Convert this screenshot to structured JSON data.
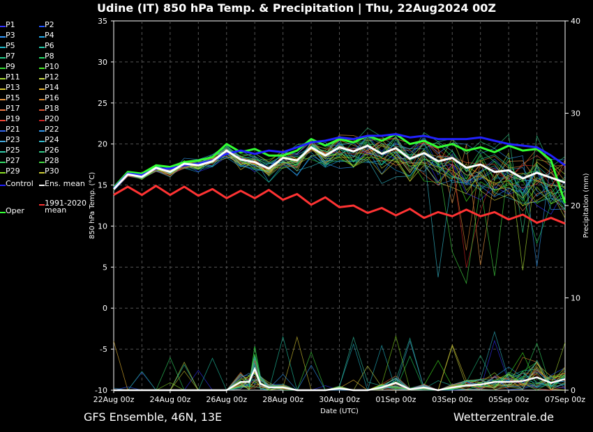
{
  "title": "Udine  (IT)  850 hPa Temp. & Precipitation | Thu, 22Aug2024 00Z",
  "footer": {
    "left": "GFS Ensemble, 46N, 13E",
    "right": "Wetterzentrale.de"
  },
  "legend": [
    {
      "label": "P1",
      "color": "#3333ff"
    },
    {
      "label": "P2",
      "color": "#2255ff"
    },
    {
      "label": "P3",
      "color": "#3399ff"
    },
    {
      "label": "P4",
      "color": "#22aaee"
    },
    {
      "label": "P5",
      "color": "#22bbcc"
    },
    {
      "label": "P6",
      "color": "#22ccaa"
    },
    {
      "label": "P7",
      "color": "#22cc88"
    },
    {
      "label": "P8",
      "color": "#22dd66"
    },
    {
      "label": "P9",
      "color": "#33dd33"
    },
    {
      "label": "P10",
      "color": "#44ee22"
    },
    {
      "label": "P11",
      "color": "#aadd33"
    },
    {
      "label": "P12",
      "color": "#ccdd44"
    },
    {
      "label": "P13",
      "color": "#ddcc33"
    },
    {
      "label": "P14",
      "color": "#eebb33"
    },
    {
      "label": "P15",
      "color": "#ee9944"
    },
    {
      "label": "P16",
      "color": "#dd8833"
    },
    {
      "label": "P17",
      "color": "#ee7744"
    },
    {
      "label": "P18",
      "color": "#dd5533"
    },
    {
      "label": "P19",
      "color": "#ee4433"
    },
    {
      "label": "P20",
      "color": "#cc2222"
    },
    {
      "label": "P21",
      "color": "#3366ee"
    },
    {
      "label": "P22",
      "color": "#3399ee"
    },
    {
      "label": "P23",
      "color": "#44aadd"
    },
    {
      "label": "P24",
      "color": "#33bbcc"
    },
    {
      "label": "P25",
      "color": "#33ccaa"
    },
    {
      "label": "P26",
      "color": "#33cc88"
    },
    {
      "label": "P27",
      "color": "#33dd66"
    },
    {
      "label": "P28",
      "color": "#44dd44"
    },
    {
      "label": "P29",
      "color": "#88dd22"
    },
    {
      "label": "P30",
      "color": "#cccc33"
    },
    {
      "label": "Control",
      "color": "#2222ff"
    },
    {
      "label": "Ens. mean",
      "color": "#ffffff"
    },
    {
      "label": "1991-2020\nmean",
      "color": "#ff3333"
    },
    {
      "label": "Oper",
      "color": "#33ff33"
    }
  ],
  "chart_data": {
    "type": "line",
    "title": "Udine  (IT)  850 hPa Temp. & Precipitation | Thu, 22Aug2024 00Z",
    "xlabel": "Date (UTC)",
    "ylabel_left": "850 hPa Temp. (°C)",
    "ylabel_right": "Precipitation (mm)",
    "ylim_left": [
      -10,
      35
    ],
    "ylim_right": [
      0,
      40
    ],
    "yticks_left": [
      -10,
      -5,
      0,
      5,
      10,
      15,
      20,
      25,
      30,
      35
    ],
    "yticks_right": [
      0,
      10,
      20,
      30,
      40
    ],
    "xlim": [
      0,
      16
    ],
    "xticks": [
      {
        "x": 0,
        "label": "22Aug 00z"
      },
      {
        "x": 2,
        "label": "24Aug 00z"
      },
      {
        "x": 4,
        "label": "26Aug 00z"
      },
      {
        "x": 6,
        "label": "28Aug 00z"
      },
      {
        "x": 8,
        "label": "30Aug 00z"
      },
      {
        "x": 10,
        "label": "01Sep 00z"
      },
      {
        "x": 12,
        "label": "03Sep 00z"
      },
      {
        "x": 14,
        "label": "05Sep 00z"
      },
      {
        "x": 16,
        "label": "07Sep 00z"
      }
    ],
    "grid": true,
    "series": [
      {
        "name": "Control",
        "color": "#2222ff",
        "width": 3,
        "x": [
          0,
          0.5,
          1,
          1.5,
          2,
          2.5,
          3,
          3.5,
          4,
          4.5,
          5,
          5.5,
          6,
          6.5,
          7,
          7.5,
          8,
          8.5,
          9,
          9.5,
          10,
          10.5,
          11,
          11.5,
          12,
          12.5,
          13,
          13.5,
          14,
          14.5,
          15,
          15.5,
          16
        ],
        "y": [
          14.6,
          16.4,
          16.2,
          17.0,
          17.0,
          17.4,
          17.6,
          18.0,
          18.8,
          19.2,
          18.8,
          19.2,
          19.0,
          19.6,
          20.2,
          20.4,
          20.8,
          20.6,
          21.0,
          21.0,
          21.2,
          20.8,
          21.0,
          20.6,
          20.6,
          20.6,
          20.8,
          20.4,
          20.0,
          19.8,
          19.6,
          18.6,
          17.4
        ]
      },
      {
        "name": "Oper",
        "color": "#33ff33",
        "width": 3,
        "x": [
          0,
          0.5,
          1,
          1.5,
          2,
          2.5,
          3,
          3.5,
          4,
          4.5,
          5,
          5.5,
          6,
          6.5,
          7,
          7.5,
          8,
          8.5,
          9,
          9.5,
          10,
          10.5,
          11,
          11.5,
          12,
          12.5,
          13,
          13.5,
          14,
          14.5,
          15,
          15.5,
          16
        ],
        "y": [
          14.7,
          16.6,
          16.4,
          17.4,
          17.2,
          17.8,
          18.0,
          18.4,
          20.0,
          19.0,
          19.4,
          18.6,
          18.6,
          19.2,
          20.6,
          19.8,
          20.6,
          20.2,
          21.0,
          20.4,
          21.2,
          20.0,
          20.4,
          19.6,
          20.0,
          19.2,
          19.6,
          19.0,
          19.8,
          19.2,
          19.4,
          18.0,
          12.8
        ]
      },
      {
        "name": "Ens. mean",
        "color": "#ffffff",
        "width": 3,
        "x": [
          0,
          0.5,
          1,
          1.5,
          2,
          2.5,
          3,
          3.5,
          4,
          4.5,
          5,
          5.5,
          6,
          6.5,
          7,
          7.5,
          8,
          8.5,
          9,
          9.5,
          10,
          10.5,
          11,
          11.5,
          12,
          12.5,
          13,
          13.5,
          14,
          14.5,
          15,
          15.5,
          16
        ],
        "y": [
          14.5,
          16.3,
          16.0,
          17.1,
          16.6,
          17.6,
          17.4,
          17.9,
          19.2,
          18.1,
          17.8,
          17.0,
          18.3,
          18.0,
          19.6,
          18.6,
          19.6,
          19.1,
          19.8,
          18.8,
          19.5,
          18.2,
          18.9,
          17.9,
          18.3,
          17.1,
          17.5,
          16.6,
          16.8,
          15.8,
          16.5,
          15.9,
          15.3
        ]
      },
      {
        "name": "1991-2020 mean",
        "color": "#ff3333",
        "width": 3,
        "x": [
          0,
          0.5,
          1,
          1.5,
          2,
          2.5,
          3,
          3.5,
          4,
          4.5,
          5,
          5.5,
          6,
          6.5,
          7,
          7.5,
          8,
          8.5,
          9,
          9.5,
          10,
          10.5,
          11,
          11.5,
          12,
          12.5,
          13,
          13.5,
          14,
          14.5,
          15,
          15.5,
          16
        ],
        "y": [
          13.8,
          14.8,
          13.8,
          14.9,
          13.8,
          14.8,
          13.7,
          14.5,
          13.4,
          14.3,
          13.4,
          14.4,
          13.2,
          13.9,
          12.6,
          13.5,
          12.3,
          12.5,
          11.6,
          12.2,
          11.3,
          12.1,
          11.0,
          11.7,
          11.2,
          12.0,
          11.2,
          11.7,
          10.8,
          11.4,
          10.4,
          11.0,
          10.3
        ]
      }
    ],
    "precipitation": [
      {
        "name": "Ens. mean",
        "color": "#ffffff",
        "x": [
          0,
          0.5,
          1,
          1.5,
          2,
          2.5,
          3,
          3.5,
          4,
          4.5,
          4.8,
          5,
          5.2,
          5.5,
          6,
          6.5,
          7,
          7.5,
          8,
          8.5,
          9,
          9.5,
          10,
          10.5,
          11,
          11.5,
          12,
          12.5,
          13,
          13.5,
          14,
          14.5,
          15,
          15.5,
          16
        ],
        "y": [
          0,
          0,
          0,
          0,
          0,
          0,
          0,
          0,
          0,
          0.9,
          0.9,
          2.3,
          0.7,
          0.3,
          0.3,
          0,
          0,
          0,
          0.2,
          0,
          0,
          0.3,
          0.8,
          0.1,
          0.3,
          0,
          0.3,
          0.5,
          0.6,
          0.9,
          0.9,
          1.0,
          1.4,
          0.8,
          1.2
        ]
      }
    ]
  }
}
